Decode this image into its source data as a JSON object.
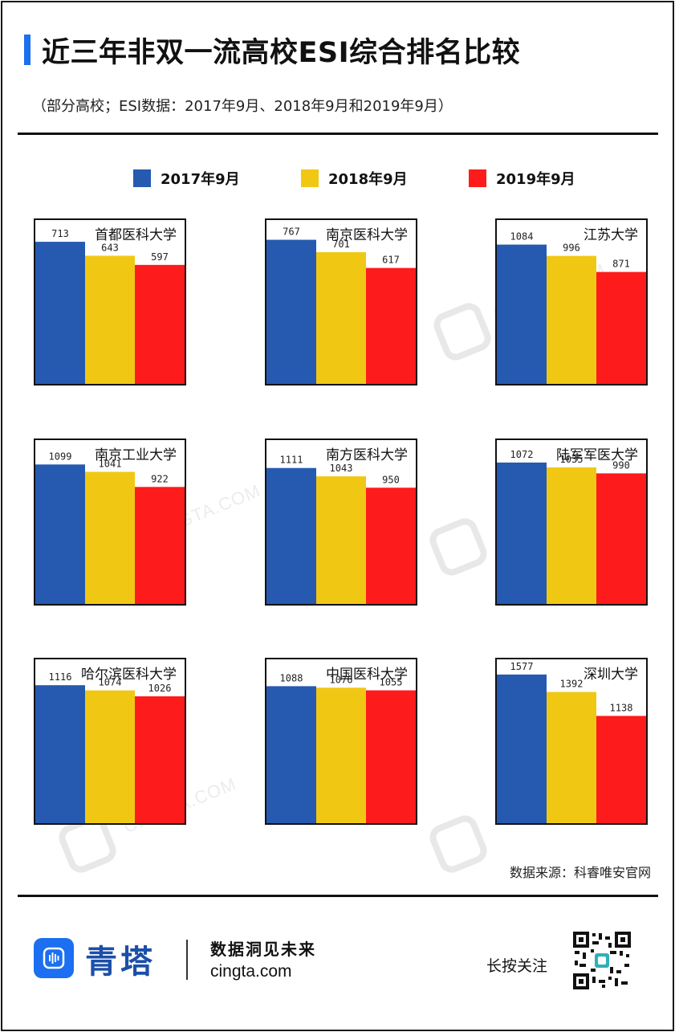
{
  "title": "近三年非双一流高校ESI综合排名比较",
  "subtitle": "（部分高校；ESI数据：2017年9月、2018年9月和2019年9月）",
  "colors": {
    "accent": "#1b6ff0",
    "s2017": "#255ab0",
    "s2018": "#f0c814",
    "s2019": "#fe1b1b"
  },
  "legend": [
    {
      "label": "2017年9月",
      "color": "#255ab0"
    },
    {
      "label": "2018年9月",
      "color": "#f0c814"
    },
    {
      "label": "2019年9月",
      "color": "#fe1b1b"
    }
  ],
  "chart_data": [
    {
      "type": "bar",
      "title": "首都医科大学",
      "categories": [
        "2017年9月",
        "2018年9月",
        "2019年9月"
      ],
      "values": [
        713,
        643,
        597
      ],
      "ylim": [
        0,
        822
      ]
    },
    {
      "type": "bar",
      "title": "南京医科大学",
      "categories": [
        "2017年9月",
        "2018年9月",
        "2019年9月"
      ],
      "values": [
        767,
        701,
        617
      ],
      "ylim": [
        0,
        872
      ]
    },
    {
      "type": "bar",
      "title": "江苏大学",
      "categories": [
        "2017年9月",
        "2018年9月",
        "2019年9月"
      ],
      "values": [
        1084,
        996,
        871
      ],
      "ylim": [
        0,
        1275
      ]
    },
    {
      "type": "bar",
      "title": "南京工业大学",
      "categories": [
        "2017年9月",
        "2018年9月",
        "2019年9月"
      ],
      "values": [
        1099,
        1041,
        922
      ],
      "ylim": [
        0,
        1291
      ]
    },
    {
      "type": "bar",
      "title": "南方医科大学",
      "categories": [
        "2017年9月",
        "2018年9月",
        "2019年9月"
      ],
      "values": [
        1111,
        1043,
        950
      ],
      "ylim": [
        0,
        1339
      ]
    },
    {
      "type": "bar",
      "title": "陆军军医大学",
      "categories": [
        "2017年9月",
        "2018年9月",
        "2019年9月"
      ],
      "values": [
        1072,
        1035,
        990
      ],
      "ylim": [
        0,
        1242
      ]
    },
    {
      "type": "bar",
      "title": "哈尔滨医科大学",
      "categories": [
        "2017年9月",
        "2018年9月",
        "2019年9月"
      ],
      "values": [
        1116,
        1074,
        1026
      ],
      "ylim": [
        0,
        1325
      ]
    },
    {
      "type": "bar",
      "title": "中国医科大学",
      "categories": [
        "2017年9月",
        "2018年9月",
        "2019年9月"
      ],
      "values": [
        1088,
        1076,
        1055
      ],
      "ylim": [
        0,
        1301
      ]
    },
    {
      "type": "bar",
      "title": "深圳大学",
      "categories": [
        "2017年9月",
        "2018年9月",
        "2019年9月"
      ],
      "values": [
        1577,
        1392,
        1138
      ],
      "ylim": [
        0,
        1738
      ]
    }
  ],
  "watermark": {
    "brand": "青 塔",
    "site": "CINGTA.COM"
  },
  "source": "数据来源：科睿唯安官网",
  "footer": {
    "brand": "青塔",
    "slogan": "数据洞见未来",
    "site": "cingta.com",
    "follow": "长按关注"
  }
}
